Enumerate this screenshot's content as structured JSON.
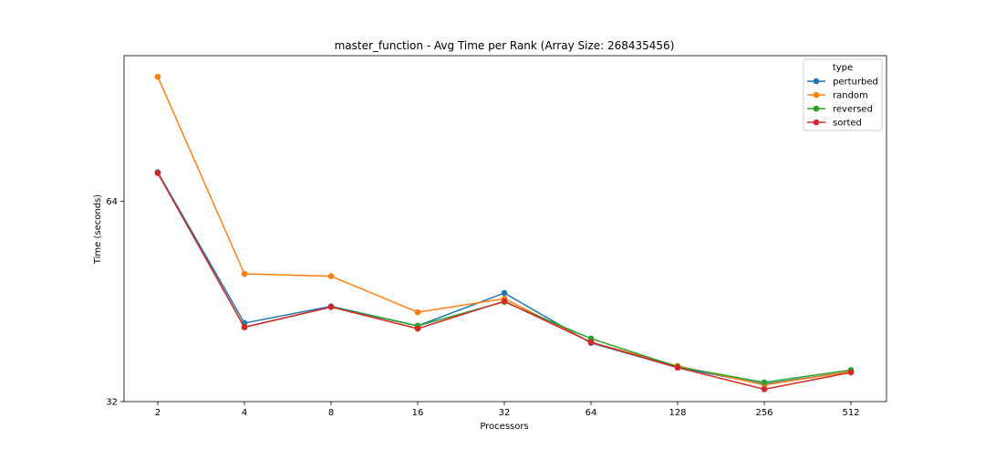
{
  "chart_data": {
    "type": "line",
    "title": "master_function - Avg Time per Rank (Array Size: 268435456)",
    "xlabel": "Processors",
    "ylabel": "Time (seconds)",
    "x_scale": "log2",
    "y_scale": "log",
    "categories": [
      "2",
      "4",
      "8",
      "16",
      "32",
      "64",
      "128",
      "256",
      "512"
    ],
    "x": [
      2,
      4,
      8,
      16,
      32,
      64,
      128,
      256,
      512
    ],
    "yticks": [
      32,
      64
    ],
    "ytick_labels": [
      "32",
      "64"
    ],
    "ylim": [
      32,
      106
    ],
    "grid": false,
    "legend": {
      "title": "type",
      "placement": "top-right"
    },
    "series": [
      {
        "name": "perturbed",
        "color": "#1f77b4",
        "values": [
          70.8,
          42.0,
          44.5,
          41.6,
          46.6,
          39.2,
          36.0,
          34.0,
          35.5
        ]
      },
      {
        "name": "random",
        "color": "#ff7f0e",
        "values": [
          98.5,
          49.8,
          49.4,
          43.6,
          45.7,
          39.3,
          36.2,
          33.9,
          35.5
        ]
      },
      {
        "name": "reversed",
        "color": "#2ca02c",
        "values": [
          70.6,
          41.4,
          44.4,
          41.6,
          45.2,
          39.8,
          36.1,
          34.2,
          35.7
        ]
      },
      {
        "name": "sorted",
        "color": "#d62728",
        "values": [
          70.6,
          41.4,
          44.4,
          41.2,
          45.3,
          39.3,
          36.0,
          33.4,
          35.4
        ]
      }
    ]
  }
}
